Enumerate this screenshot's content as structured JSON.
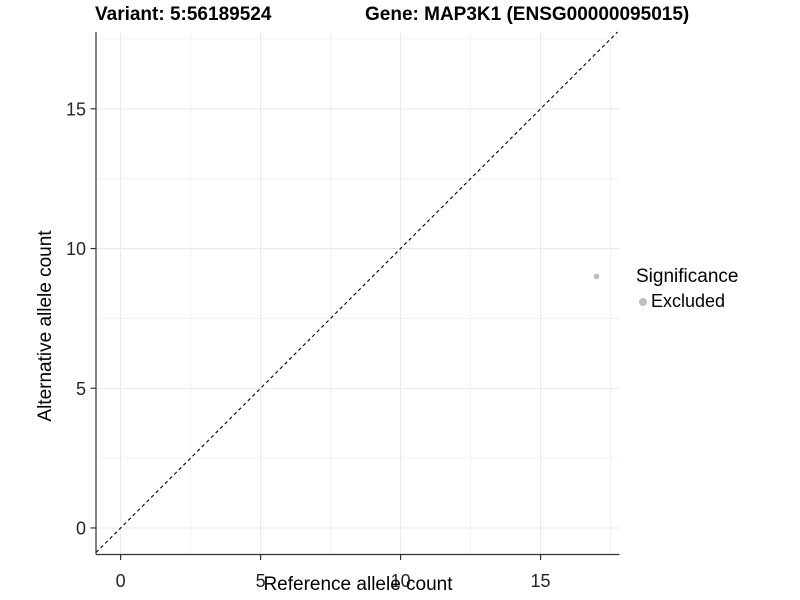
{
  "figure": {
    "title_variant": "Variant: 5:56189524",
    "title_gene": "Gene: MAP3K1 (ENSG00000095015)"
  },
  "legend": {
    "title": "Significance",
    "items": [
      {
        "label": "Excluded",
        "color": "#bebebe"
      }
    ]
  },
  "chart_data": {
    "type": "scatter",
    "title": "Variant: 5:56189524  |  Gene: MAP3K1 (ENSG00000095015)",
    "xlabel": "Reference allele count",
    "ylabel": "Alternative allele count",
    "xlim": [
      -0.88,
      17.82
    ],
    "ylim": [
      -0.95,
      17.75
    ],
    "xticks": [
      0,
      5,
      10,
      15
    ],
    "yticks": [
      0,
      5,
      10,
      15
    ],
    "x_minor_gridlines": [
      2.5,
      7.5,
      12.5,
      17.5
    ],
    "y_minor_gridlines": [
      2.5,
      7.5,
      12.5,
      17.5
    ],
    "grid": true,
    "legend_position": "right",
    "reference_line": {
      "type": "identity",
      "slope": 1,
      "intercept": 0,
      "style": "dashed",
      "color": "#000000"
    },
    "series": [
      {
        "name": "Excluded",
        "color": "#bebebe",
        "points": [
          {
            "x": 17,
            "y": 9
          }
        ],
        "point_radius": 2.8
      }
    ],
    "colors": {
      "major_grid": "#e9e9e9",
      "minor_grid": "#f0f0f0",
      "axis_line": "#333333",
      "tick_text": "#262626"
    }
  }
}
